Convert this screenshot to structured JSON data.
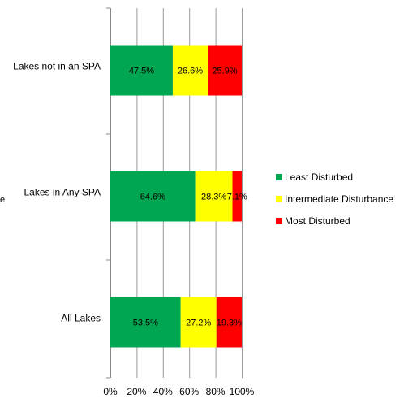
{
  "chart_data": {
    "type": "bar",
    "orientation": "horizontal",
    "stacked": "percent",
    "categories": [
      "Lakes not in an SPA",
      "Lakes in Any SPA",
      "All Lakes"
    ],
    "series": [
      {
        "name": "Least Disturbed",
        "color": "#00a651",
        "values": [
          47.5,
          64.6,
          53.5
        ],
        "labels": [
          "47.5%",
          "64.6%",
          "53.5%"
        ]
      },
      {
        "name": "Intermediate Disturbance",
        "color": "#ffff00",
        "values": [
          26.6,
          28.3,
          27.2
        ],
        "labels": [
          "26.6%",
          "28.3%",
          "27.2%"
        ]
      },
      {
        "name": "Most Disturbed",
        "color": "#ff0000",
        "values": [
          25.9,
          7.1,
          19.3
        ],
        "labels": [
          "25.9%",
          "7.1%",
          "19.3%"
        ]
      }
    ],
    "x_ticks": [
      "0%",
      "20%",
      "40%",
      "60%",
      "80%",
      "100%"
    ],
    "xlim": [
      0,
      100
    ],
    "ylabel_fragment": "e",
    "grid": true,
    "legend_position": "right"
  }
}
